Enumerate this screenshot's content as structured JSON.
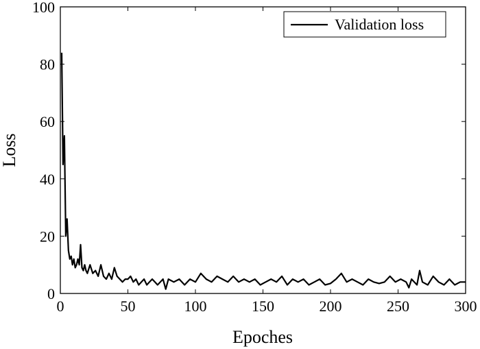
{
  "chart_data": {
    "type": "line",
    "title": "",
    "xlabel": "Epoches",
    "ylabel": "Loss",
    "xlim": [
      0,
      300
    ],
    "ylim": [
      0,
      100
    ],
    "xticks": [
      "0",
      "50",
      "100",
      "150",
      "200",
      "250",
      "300"
    ],
    "yticks": [
      "0",
      "20",
      "40",
      "60",
      "80",
      "100"
    ],
    "grid": false,
    "legend_position": "top-right",
    "line_color": "#000000",
    "series": [
      {
        "name": "Validation loss",
        "x": [
          1,
          2,
          3,
          4,
          5,
          6,
          7,
          8,
          9,
          10,
          11,
          12,
          13,
          14,
          15,
          16,
          17,
          18,
          19,
          20,
          22,
          24,
          26,
          28,
          30,
          32,
          34,
          36,
          38,
          40,
          42,
          44,
          46,
          48,
          50,
          52,
          54,
          56,
          58,
          60,
          62,
          64,
          66,
          68,
          70,
          72,
          74,
          76,
          78,
          80,
          84,
          88,
          92,
          96,
          100,
          104,
          108,
          112,
          116,
          120,
          124,
          128,
          132,
          136,
          140,
          144,
          148,
          152,
          156,
          160,
          164,
          168,
          172,
          176,
          180,
          184,
          188,
          192,
          196,
          200,
          204,
          208,
          212,
          216,
          220,
          224,
          228,
          232,
          236,
          240,
          244,
          248,
          252,
          256,
          258,
          260,
          264,
          266,
          268,
          272,
          276,
          280,
          284,
          288,
          292,
          296,
          300
        ],
        "y": [
          84,
          45,
          55,
          20,
          26,
          15,
          12,
          13,
          10,
          12,
          9,
          10,
          12,
          10,
          17,
          9,
          8,
          10,
          8,
          7,
          10,
          7,
          8,
          6,
          10,
          6,
          5,
          7,
          5,
          9,
          6,
          5,
          4,
          5,
          5,
          6,
          4,
          5,
          3,
          4,
          5,
          3,
          4,
          5,
          4,
          3,
          4,
          5,
          1.5,
          5,
          4,
          5,
          3,
          5,
          4,
          7,
          5,
          4,
          6,
          5,
          4,
          6,
          4,
          5,
          4,
          5,
          3,
          4,
          5,
          4,
          6,
          3,
          5,
          4,
          5,
          3,
          4,
          5,
          3,
          3.5,
          5,
          7,
          4,
          5,
          4,
          3,
          5,
          4,
          3.5,
          4,
          6,
          4,
          5,
          4,
          2,
          5,
          3,
          8,
          4,
          3,
          6,
          4,
          3,
          5,
          3,
          4,
          4
        ]
      }
    ]
  }
}
